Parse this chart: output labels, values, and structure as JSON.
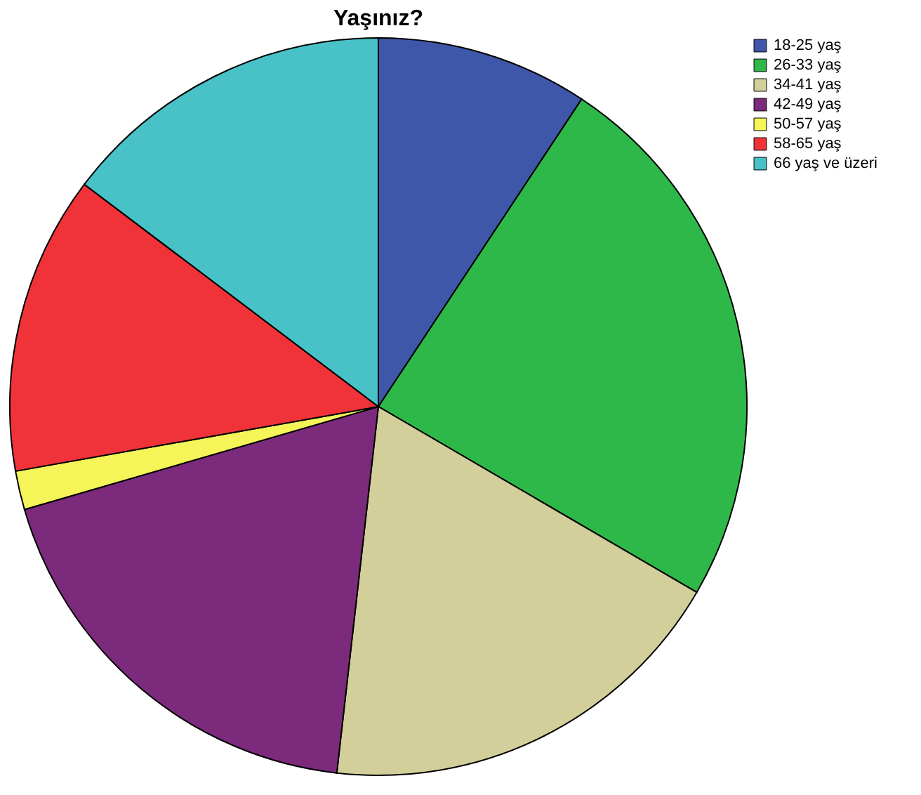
{
  "chart_data": {
    "type": "pie",
    "title": "Yaşınız?",
    "categories": [
      "18-25 yaş",
      "26-33 yaş",
      "34-41 yaş",
      "42-49 yaş",
      "50-57 yaş",
      "58-65 yaş",
      "66 yaş ve üzeri"
    ],
    "values": [
      9.3,
      24.1,
      18.4,
      18.7,
      1.7,
      13.1,
      14.7
    ],
    "colors": [
      "#3f57a8",
      "#2fb84a",
      "#d3cf9a",
      "#7b2a7c",
      "#f5f55a",
      "#ef3339",
      "#48c2c6"
    ],
    "legend": "top right"
  }
}
